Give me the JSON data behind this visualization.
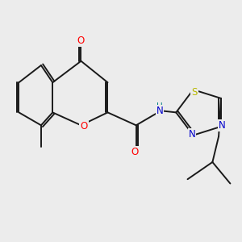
{
  "background_color": "#ececec",
  "bond_color": "#1a1a1a",
  "O_color": "#ff0000",
  "N_color": "#0000cc",
  "S_color": "#b8b800",
  "H_color": "#008080",
  "figsize": [
    3.0,
    3.0
  ],
  "dpi": 100,
  "xlim": [
    0,
    10
  ],
  "ylim": [
    0,
    10
  ]
}
